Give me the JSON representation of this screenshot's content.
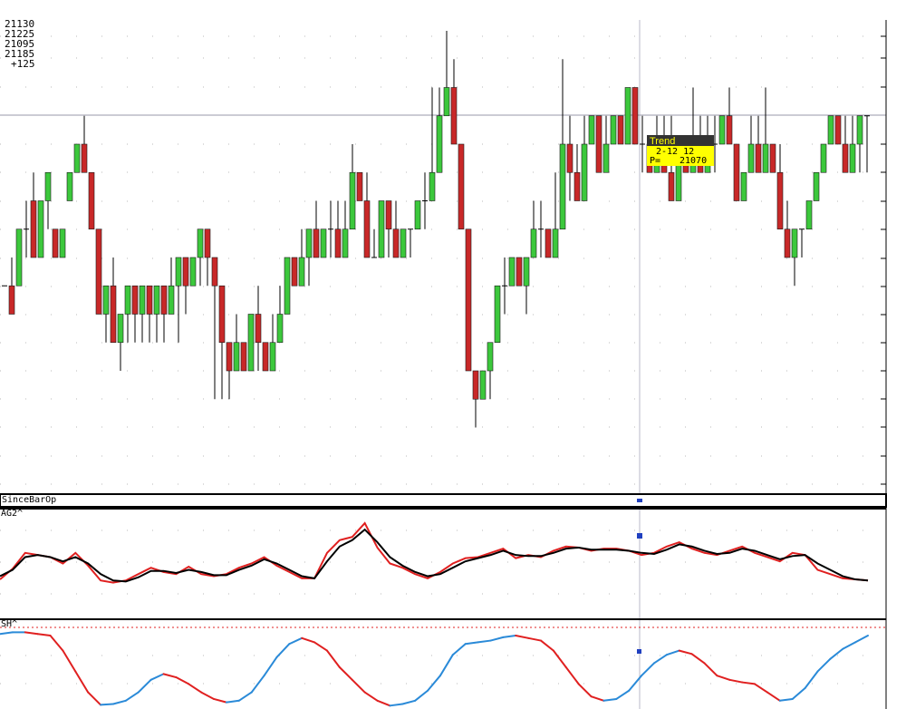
{
  "top_labels": [
    "21130",
    "21225",
    "21095",
    "21185",
    "+125"
  ],
  "panels": {
    "price": {
      "name": ""
    },
    "since": {
      "name": "SinceBarOp"
    },
    "osc1": {
      "name": "AG2^"
    },
    "osc2": {
      "name": "SH^"
    }
  },
  "tooltip": {
    "title": "Trend",
    "line1": "2-12 12",
    "line2_label": "P=",
    "line2_value": "21070"
  },
  "colors": {
    "up": "#3cc83c",
    "down": "#c82828",
    "wick": "#000000",
    "grid_dot": "#b8b8b8",
    "tooltip_bg": "#ffff00",
    "tooltip_head": "#333333",
    "osc_red": "#e02020",
    "osc_black": "#000000",
    "osc_blue": "#2a8ad8",
    "crosshair": "#b8b8c8"
  },
  "chart_data": [
    {
      "type": "candlestick",
      "title": "",
      "y_units": "index (ticks) — bottom=0, top=17 relative grid steps",
      "candles": [
        [
          10,
          10,
          10,
          10
        ],
        [
          10,
          9,
          11,
          10
        ],
        [
          10,
          12,
          9,
          12
        ],
        [
          12,
          12,
          13,
          11
        ],
        [
          13,
          11,
          14,
          11
        ],
        [
          11,
          13,
          11,
          13
        ],
        [
          13,
          14,
          13,
          12
        ],
        [
          12,
          11,
          12,
          11
        ],
        [
          11,
          12,
          11,
          13
        ],
        [
          13,
          14,
          12,
          14
        ],
        [
          14,
          15,
          14,
          15
        ],
        [
          15,
          14,
          16,
          14
        ],
        [
          14,
          12,
          14,
          12
        ],
        [
          12,
          9,
          12,
          9
        ],
        [
          9,
          10,
          10,
          8
        ],
        [
          10,
          8,
          11,
          8
        ],
        [
          8,
          9,
          9,
          7
        ],
        [
          9,
          10,
          10,
          8
        ],
        [
          10,
          9,
          10,
          8
        ],
        [
          9,
          10,
          10,
          8
        ],
        [
          10,
          9,
          10,
          8
        ],
        [
          9,
          10,
          10,
          8
        ],
        [
          10,
          9,
          10,
          8
        ],
        [
          9,
          10,
          11,
          9
        ],
        [
          10,
          11,
          11,
          8
        ],
        [
          11,
          10,
          11,
          9
        ],
        [
          10,
          11,
          11,
          10
        ],
        [
          11,
          12,
          12,
          10
        ],
        [
          12,
          11,
          12,
          10
        ],
        [
          11,
          10,
          11,
          6
        ],
        [
          10,
          8,
          10,
          6
        ],
        [
          8,
          7,
          8,
          6
        ],
        [
          7,
          8,
          9,
          7
        ],
        [
          8,
          7,
          8,
          7
        ],
        [
          7,
          9,
          9,
          7
        ],
        [
          9,
          8,
          10,
          7
        ],
        [
          8,
          7,
          8,
          7
        ],
        [
          7,
          8,
          9,
          7
        ],
        [
          8,
          9,
          10,
          8
        ],
        [
          9,
          11,
          11,
          9
        ],
        [
          11,
          10,
          11,
          10
        ],
        [
          10,
          11,
          12,
          10
        ],
        [
          11,
          12,
          12,
          10
        ],
        [
          12,
          11,
          13,
          11
        ],
        [
          11,
          12,
          12,
          11
        ],
        [
          12,
          12,
          13,
          11
        ],
        [
          12,
          11,
          13,
          11
        ],
        [
          11,
          12,
          13,
          11
        ],
        [
          12,
          14,
          15,
          12
        ],
        [
          14,
          13,
          14,
          13
        ],
        [
          13,
          11,
          14,
          11
        ],
        [
          11,
          11,
          12,
          11
        ],
        [
          11,
          13,
          13,
          11
        ],
        [
          13,
          12,
          13,
          11
        ],
        [
          12,
          11,
          13,
          12
        ],
        [
          11,
          12,
          12,
          11
        ],
        [
          12,
          12,
          12,
          11
        ],
        [
          12,
          13,
          13,
          12
        ],
        [
          13,
          13,
          14,
          12
        ],
        [
          13,
          14,
          17,
          14
        ],
        [
          14,
          16,
          17,
          14
        ],
        [
          16,
          17,
          19,
          16
        ],
        [
          17,
          15,
          18,
          15
        ],
        [
          15,
          12,
          15,
          12
        ],
        [
          12,
          7,
          12,
          7
        ],
        [
          7,
          6,
          7,
          5
        ],
        [
          6,
          7,
          6,
          6
        ],
        [
          7,
          8,
          7,
          6
        ],
        [
          8,
          10,
          10,
          8
        ],
        [
          10,
          10,
          11,
          9
        ],
        [
          10,
          11,
          11,
          10
        ],
        [
          11,
          10,
          11,
          10
        ],
        [
          10,
          11,
          11,
          9
        ],
        [
          11,
          12,
          13,
          11
        ],
        [
          12,
          12,
          13,
          11
        ],
        [
          12,
          11,
          12,
          11
        ],
        [
          11,
          12,
          14,
          11
        ],
        [
          12,
          15,
          18,
          12
        ],
        [
          15,
          14,
          16,
          13
        ],
        [
          14,
          13,
          15,
          13
        ],
        [
          13,
          15,
          16,
          14
        ],
        [
          15,
          16,
          16,
          15
        ],
        [
          16,
          14,
          16,
          14
        ],
        [
          14,
          15,
          16,
          14
        ],
        [
          15,
          16,
          16,
          15
        ],
        [
          16,
          15,
          16,
          15
        ],
        [
          15,
          17,
          17,
          15
        ],
        [
          17,
          15,
          17,
          15
        ],
        [
          15,
          15,
          16,
          14
        ],
        [
          15,
          14,
          15,
          14
        ],
        [
          14,
          15,
          16,
          14
        ],
        [
          15,
          14,
          16,
          14
        ],
        [
          14,
          13,
          16,
          13
        ],
        [
          13,
          15,
          15,
          13
        ],
        [
          15,
          14,
          15,
          14
        ],
        [
          14,
          15,
          17,
          14
        ],
        [
          15,
          14,
          16,
          14
        ],
        [
          14,
          15,
          16,
          14
        ],
        [
          15,
          15,
          16,
          14
        ],
        [
          15,
          16,
          16,
          15
        ],
        [
          16,
          15,
          17,
          15
        ],
        [
          15,
          13,
          15,
          13
        ],
        [
          13,
          14,
          14,
          13
        ],
        [
          14,
          15,
          16,
          14
        ],
        [
          15,
          14,
          16,
          14
        ],
        [
          14,
          15,
          17,
          14
        ],
        [
          15,
          14,
          15,
          14
        ],
        [
          14,
          12,
          15,
          12
        ],
        [
          12,
          11,
          13,
          11
        ],
        [
          11,
          12,
          12,
          10
        ],
        [
          12,
          12,
          12,
          11
        ],
        [
          12,
          13,
          13,
          12
        ],
        [
          13,
          14,
          14,
          13
        ],
        [
          14,
          15,
          15,
          14
        ],
        [
          15,
          16,
          16,
          15
        ],
        [
          16,
          15,
          16,
          15
        ],
        [
          15,
          14,
          16,
          14
        ],
        [
          14,
          15,
          16,
          14
        ],
        [
          15,
          16,
          16,
          14
        ],
        [
          16,
          16,
          16,
          14
        ]
      ]
    },
    {
      "type": "line",
      "name": "AG2^",
      "series": [
        {
          "name": "",
          "color": "red",
          "values": [
            35,
            45,
            60,
            58,
            56,
            50,
            60,
            48,
            34,
            32,
            34,
            40,
            46,
            42,
            40,
            47,
            40,
            38,
            40,
            46,
            50,
            56,
            48,
            42,
            36,
            36,
            60,
            72,
            75,
            88,
            65,
            50,
            46,
            40,
            36,
            42,
            50,
            55,
            56,
            60,
            64,
            55,
            58,
            56,
            62,
            66,
            65,
            62,
            64,
            64,
            62,
            58,
            60,
            66,
            70,
            64,
            60,
            58,
            62,
            66,
            60,
            56,
            52,
            60,
            58,
            44,
            40,
            36,
            35,
            34
          ]
        },
        {
          "name": "",
          "color": "black",
          "values": [
            38,
            44,
            56,
            58,
            56,
            52,
            56,
            50,
            40,
            34,
            33,
            37,
            43,
            43,
            41,
            44,
            42,
            39,
            39,
            44,
            48,
            54,
            50,
            44,
            38,
            36,
            52,
            66,
            72,
            82,
            70,
            56,
            48,
            42,
            38,
            40,
            46,
            52,
            55,
            58,
            62,
            58,
            57,
            57,
            60,
            64,
            65,
            63,
            63,
            63,
            62,
            60,
            59,
            63,
            68,
            66,
            62,
            59,
            60,
            64,
            62,
            58,
            54,
            57,
            58,
            50,
            44,
            38,
            35,
            34
          ]
        }
      ]
    },
    {
      "type": "line",
      "name": "SH^",
      "series": [
        {
          "name": "",
          "color": "red/blue",
          "values": [
            90,
            92,
            92,
            90,
            88,
            70,
            45,
            20,
            5,
            6,
            10,
            20,
            35,
            42,
            38,
            30,
            20,
            12,
            8,
            10,
            20,
            40,
            62,
            78,
            85,
            80,
            70,
            50,
            35,
            20,
            10,
            4,
            6,
            10,
            22,
            40,
            65,
            78,
            80,
            82,
            86,
            88,
            85,
            82,
            70,
            50,
            30,
            15,
            10,
            12,
            22,
            40,
            55,
            65,
            70,
            66,
            55,
            40,
            35,
            32,
            30,
            20,
            10,
            12,
            25,
            45,
            60,
            72,
            80,
            88
          ]
        }
      ]
    }
  ]
}
